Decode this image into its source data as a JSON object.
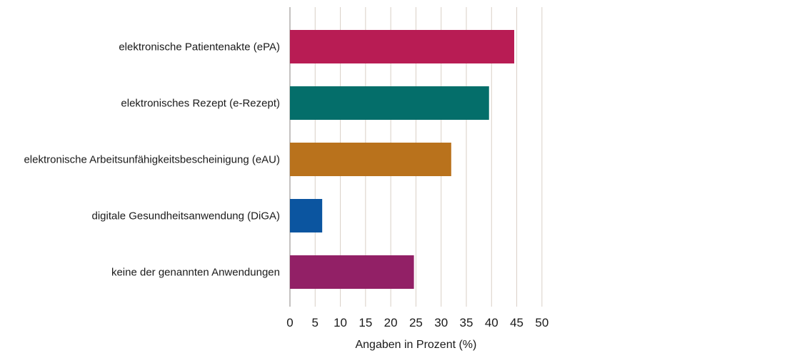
{
  "chart_data": {
    "type": "bar",
    "orientation": "horizontal",
    "categories": [
      "elektronische Patientenakte (ePA)",
      "elektronisches Rezept (e-Rezept)",
      "elektronische Arbeitsunfähigkeitsbescheinigung (eAU)",
      "digitale Gesundheitsanwendung (DiGA)",
      "keine der genannten Anwendungen"
    ],
    "values": [
      44.5,
      39.5,
      32.0,
      6.4,
      24.6
    ],
    "colors": [
      "#b81c54",
      "#046e6a",
      "#b9721c",
      "#0b55a0",
      "#922066"
    ],
    "xlabel": "Angaben in Prozent (%)",
    "ylabel": "",
    "title": "",
    "xlim": [
      0,
      50
    ],
    "xticks": [
      "0",
      "5",
      "10",
      "15",
      "20",
      "25",
      "30",
      "35",
      "40",
      "45",
      "50"
    ],
    "grid": true,
    "gridline_color": "#d9cfc6"
  }
}
